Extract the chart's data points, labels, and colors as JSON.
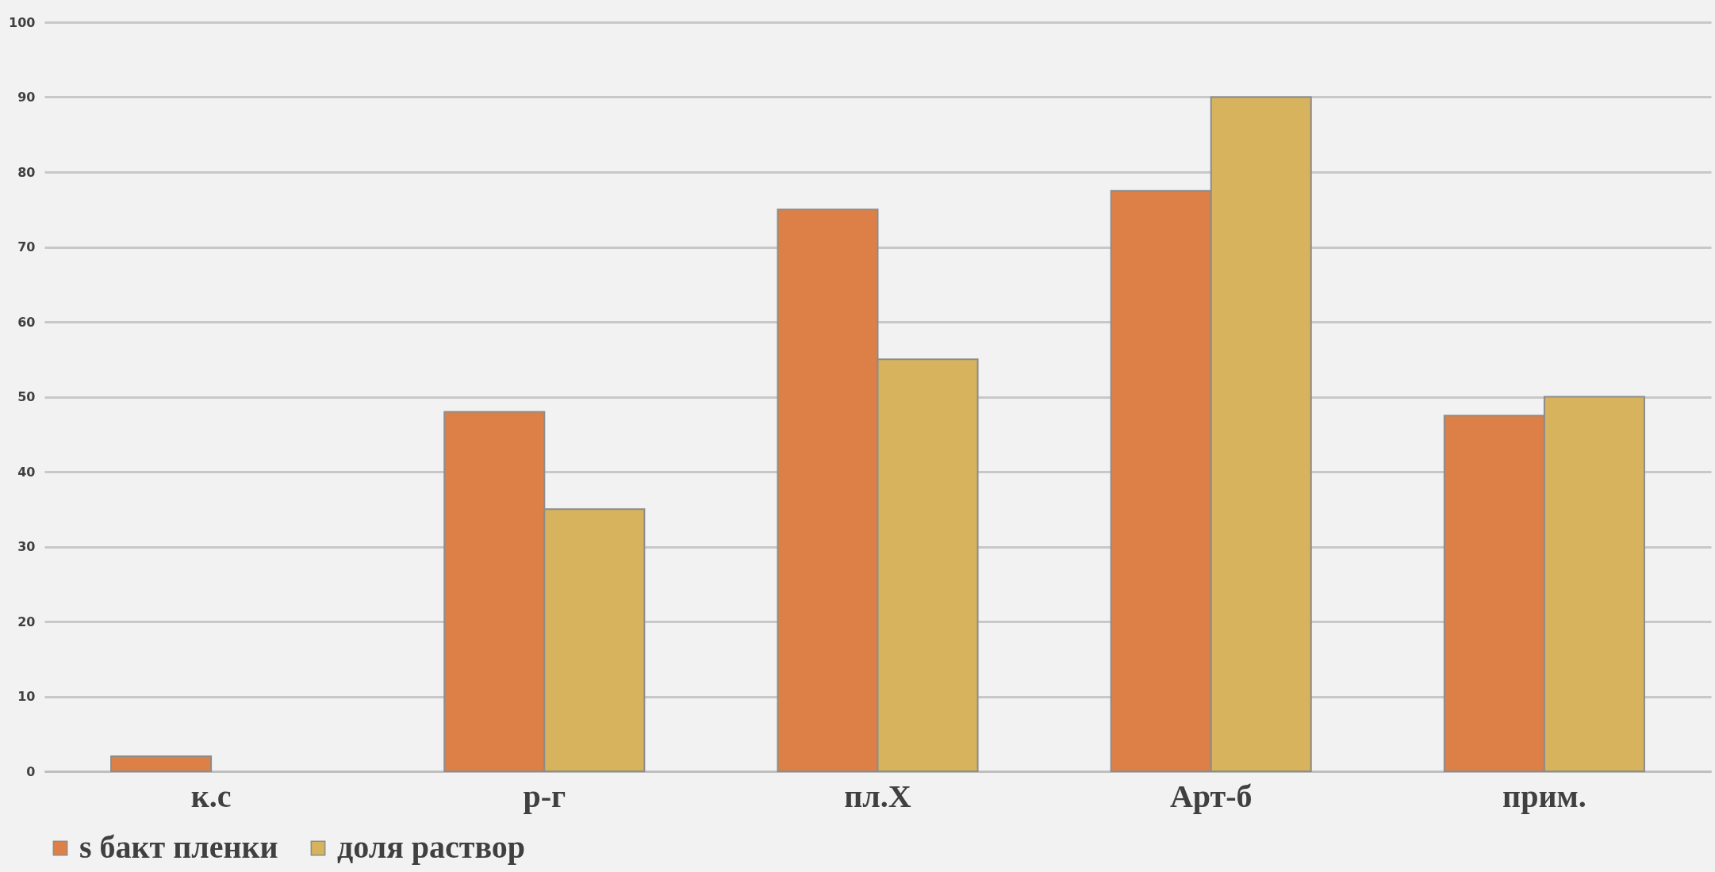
{
  "chart_data": {
    "type": "bar",
    "categories": [
      "к.с",
      "р-г",
      "пл.Х",
      "Арт-б",
      "прим."
    ],
    "series": [
      {
        "name": "s бакт пленки",
        "color": "#dd8047",
        "values": [
          2,
          48,
          75,
          77.5,
          47.5
        ]
      },
      {
        "name": "доля раствор",
        "color": "#d6b35c",
        "values": [
          null,
          35,
          55,
          90,
          50
        ]
      }
    ],
    "ylim": [
      0,
      100
    ],
    "yticks": [
      0,
      10,
      20,
      30,
      40,
      50,
      60,
      70,
      80,
      90,
      100
    ],
    "grid": "y",
    "legend": "bottom"
  }
}
